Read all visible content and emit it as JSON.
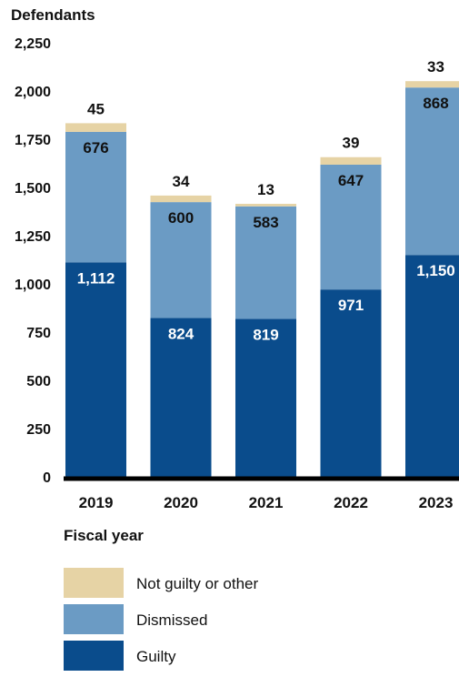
{
  "chart_data": {
    "type": "bar",
    "stacked": true,
    "ylabel": "Defendants",
    "xlabel": "Fiscal year",
    "ylim": [
      0,
      2250
    ],
    "yticks": [
      "0",
      "250",
      "500",
      "750",
      "1,000",
      "1,250",
      "1,500",
      "1,750",
      "2,000",
      "2,250"
    ],
    "categories": [
      "2019",
      "2020",
      "2021",
      "2022",
      "2023"
    ],
    "series": [
      {
        "name": "Guilty",
        "values": [
          1112,
          824,
          819,
          971,
          1150
        ],
        "labels": [
          "1,112",
          "824",
          "819",
          "971",
          "1,150"
        ],
        "color": "#0a4c8c"
      },
      {
        "name": "Dismissed",
        "values": [
          676,
          600,
          583,
          647,
          868
        ],
        "labels": [
          "676",
          "600",
          "583",
          "647",
          "868"
        ],
        "color": "#6b9bc4"
      },
      {
        "name": "Not guilty or other",
        "values": [
          45,
          34,
          13,
          39,
          33
        ],
        "labels": [
          "45",
          "34",
          "13",
          "39",
          "33"
        ],
        "color": "#e6d3a5"
      }
    ],
    "legend_position": "bottom-left",
    "grid": false
  }
}
